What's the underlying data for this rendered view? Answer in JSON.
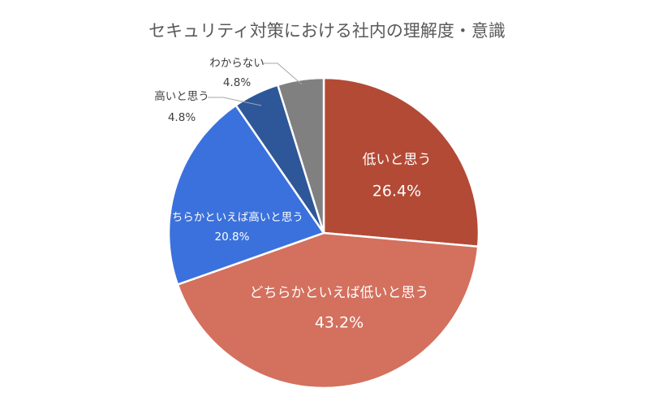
{
  "chart_data": {
    "type": "pie",
    "title": "セキュリティ対策における社内の理解度・意識",
    "slices": [
      {
        "label": "低いと思う",
        "value": 26.4,
        "display": "26.4%",
        "color": "#b34a36"
      },
      {
        "label": "どちらかといえば低いと思う",
        "value": 43.2,
        "display": "43.2%",
        "color": "#d4705e"
      },
      {
        "label": "どちらかといえば高いと思う",
        "value": 20.8,
        "display": "20.8%",
        "color": "#3b71dc"
      },
      {
        "label": "高いと思う",
        "value": 4.8,
        "display": "4.8%",
        "color": "#2e5799"
      },
      {
        "label": "わからない",
        "value": 4.8,
        "display": "4.8%",
        "color": "#808080"
      }
    ],
    "legend": "none"
  }
}
